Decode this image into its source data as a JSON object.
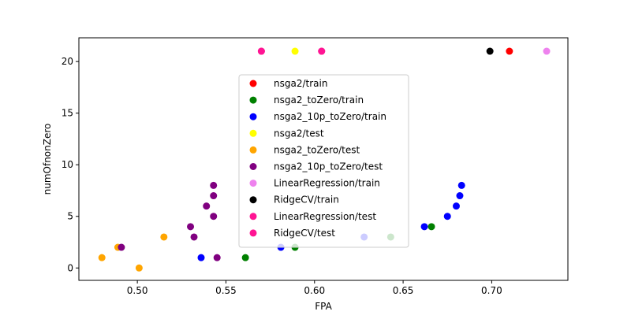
{
  "chart_data": {
    "type": "scatter",
    "title": "",
    "xlabel": "FPA",
    "ylabel": "numOfnonZero",
    "xlim": [
      0.467,
      0.743
    ],
    "ylim": [
      -1.2,
      22.3
    ],
    "xticks": [
      0.5,
      0.55,
      0.6,
      0.65,
      0.7
    ],
    "xtick_labels": [
      "0.50",
      "0.55",
      "0.60",
      "0.65",
      "0.70"
    ],
    "yticks": [
      0,
      5,
      10,
      15,
      20
    ],
    "ytick_labels": [
      "0",
      "5",
      "10",
      "15",
      "20"
    ],
    "grid": false,
    "legend_position": "center",
    "series": [
      {
        "name": "nsga2/train",
        "color": "#ff0000",
        "points": [
          [
            0.71,
            21
          ]
        ]
      },
      {
        "name": "nsga2_toZero/train",
        "color": "#008000",
        "points": [
          [
            0.561,
            1
          ],
          [
            0.589,
            2
          ],
          [
            0.643,
            3
          ],
          [
            0.666,
            4
          ]
        ]
      },
      {
        "name": "nsga2_10p_toZero/train",
        "color": "#0000ff",
        "points": [
          [
            0.536,
            1
          ],
          [
            0.581,
            2
          ],
          [
            0.628,
            3
          ],
          [
            0.662,
            4
          ],
          [
            0.675,
            5
          ],
          [
            0.68,
            6
          ],
          [
            0.682,
            7
          ],
          [
            0.683,
            8
          ]
        ]
      },
      {
        "name": "nsga2/test",
        "color": "#ffff00",
        "points": [
          [
            0.589,
            21
          ]
        ]
      },
      {
        "name": "nsga2_toZero/test",
        "color": "#ffa500",
        "points": [
          [
            0.48,
            1
          ],
          [
            0.489,
            2
          ],
          [
            0.501,
            0
          ],
          [
            0.515,
            3
          ]
        ]
      },
      {
        "name": "nsga2_10p_toZero/test",
        "color": "#800080",
        "points": [
          [
            0.491,
            2
          ],
          [
            0.53,
            4
          ],
          [
            0.532,
            3
          ],
          [
            0.539,
            6
          ],
          [
            0.543,
            5
          ],
          [
            0.543,
            7
          ],
          [
            0.543,
            8
          ],
          [
            0.545,
            1
          ]
        ]
      },
      {
        "name": "LinearRegression/train",
        "color": "#ee82ee",
        "points": [
          [
            0.731,
            21
          ]
        ]
      },
      {
        "name": "RidgeCV/train",
        "color": "#000000",
        "points": [
          [
            0.699,
            21
          ]
        ]
      },
      {
        "name": "LinearRegression/test",
        "color": "#ff1493",
        "points": [
          [
            0.57,
            21
          ],
          [
            0.604,
            21
          ]
        ]
      },
      {
        "name": "RidgeCV/test",
        "color": "#ff1493",
        "points": [
          [
            0.57,
            21
          ],
          [
            0.604,
            21
          ]
        ]
      }
    ]
  }
}
